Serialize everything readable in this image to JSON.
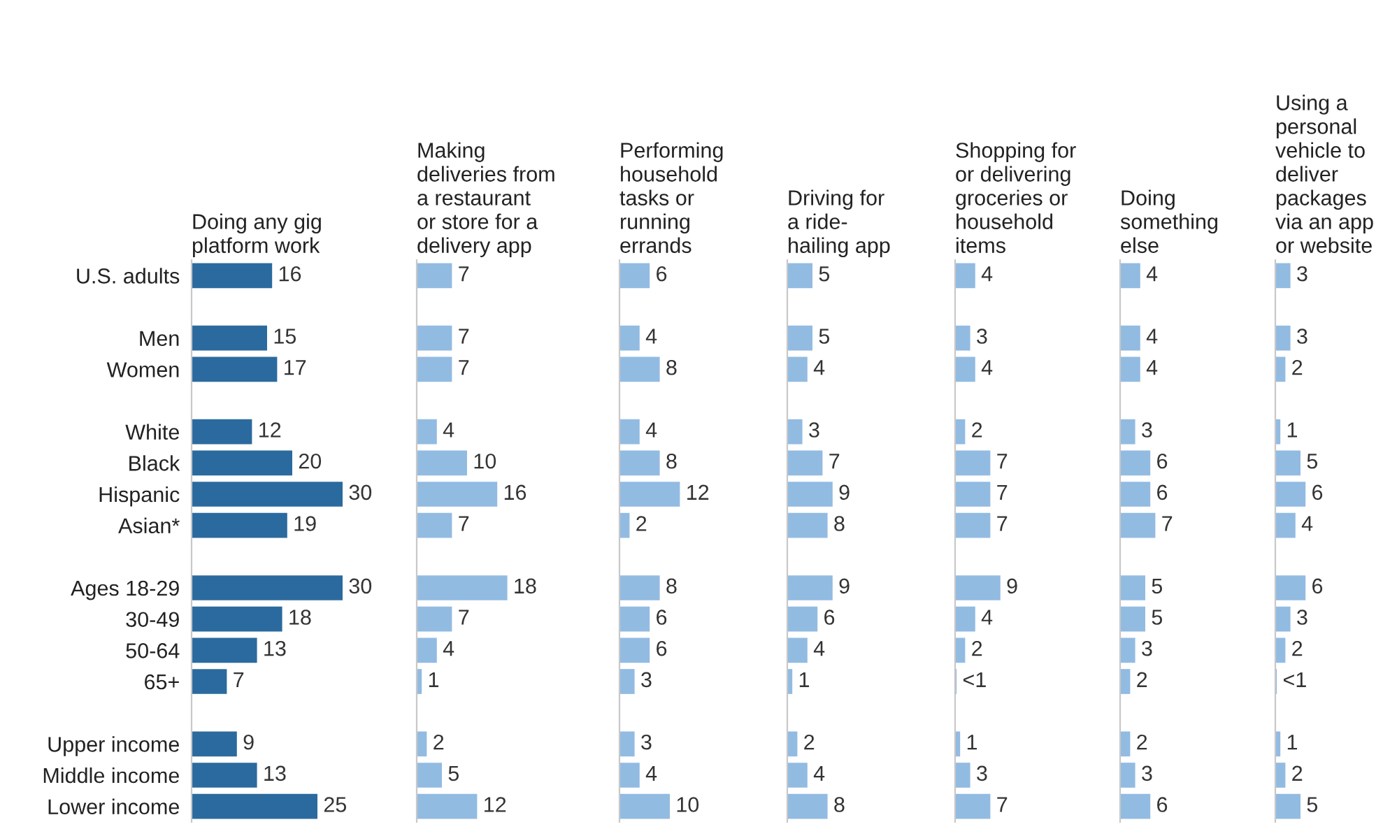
{
  "chart_data": [
    {
      "type": "bar",
      "orientation": "horizontal",
      "title": "Doing any gig\nplatform work",
      "categories": [
        "U.S. adults",
        null,
        "Men",
        "Women",
        null,
        "White",
        "Black",
        "Hispanic",
        "Asian*",
        null,
        "Ages 18-29",
        "30-49",
        "50-64",
        "65+",
        null,
        "Upper income",
        "Middle income",
        "Lower income"
      ],
      "values": [
        16,
        null,
        15,
        17,
        null,
        12,
        20,
        30,
        19,
        null,
        30,
        18,
        13,
        7,
        null,
        9,
        13,
        25
      ],
      "color": "#2b6a9e",
      "tick_labels": "y",
      "data_labels": true,
      "grid": false,
      "legend": false
    },
    {
      "type": "bar",
      "orientation": "horizontal",
      "title": "Making\ndeliveries from\na restaurant\nor store for a\ndelivery app",
      "values": [
        7,
        null,
        7,
        7,
        null,
        4,
        10,
        16,
        7,
        null,
        18,
        7,
        4,
        1,
        null,
        2,
        5,
        12
      ],
      "color": "#92bbe2",
      "tick_labels": false,
      "data_labels": true,
      "grid": false,
      "legend": false
    },
    {
      "type": "bar",
      "orientation": "horizontal",
      "title": "Performing\nhousehold\ntasks or\nrunning\nerrands",
      "values": [
        6,
        null,
        4,
        8,
        null,
        4,
        8,
        12,
        2,
        null,
        8,
        6,
        6,
        3,
        null,
        3,
        4,
        10
      ],
      "color": "#92bbe2",
      "tick_labels": false,
      "data_labels": true,
      "grid": false,
      "legend": false
    },
    {
      "type": "bar",
      "orientation": "horizontal",
      "title": "Driving for\na ride-\nhailing app",
      "values": [
        5,
        null,
        5,
        4,
        null,
        3,
        7,
        9,
        8,
        null,
        9,
        6,
        4,
        1,
        null,
        2,
        4,
        8
      ],
      "color": "#92bbe2",
      "tick_labels": false,
      "data_labels": true,
      "grid": false,
      "legend": false
    },
    {
      "type": "bar",
      "orientation": "horizontal",
      "title": "Shopping for\nor delivering\ngroceries or\nhousehold\nitems",
      "values": [
        4,
        null,
        3,
        4,
        null,
        2,
        7,
        7,
        7,
        null,
        9,
        4,
        2,
        0.3,
        null,
        1,
        3,
        7
      ],
      "value_labels": [
        "4",
        null,
        "3",
        "4",
        null,
        "2",
        "7",
        "7",
        "7",
        null,
        "9",
        "4",
        "2",
        "<1",
        null,
        "1",
        "3",
        "7"
      ],
      "color": "#92bbe2",
      "tick_labels": false,
      "grid": false,
      "legend": false
    },
    {
      "type": "bar",
      "orientation": "horizontal",
      "title": "Doing\nsomething\nelse",
      "values": [
        4,
        null,
        4,
        4,
        null,
        3,
        6,
        6,
        7,
        null,
        5,
        5,
        3,
        2,
        null,
        2,
        3,
        6
      ],
      "color": "#92bbe2",
      "tick_labels": false,
      "data_labels": true,
      "grid": false,
      "legend": false
    },
    {
      "type": "bar",
      "orientation": "horizontal",
      "title": "Using a\npersonal\nvehicle to\ndeliver\npackages\nvia an app\nor website",
      "values": [
        3,
        null,
        3,
        2,
        null,
        1,
        5,
        6,
        4,
        null,
        6,
        3,
        2,
        0.3,
        null,
        1,
        2,
        5
      ],
      "value_labels": [
        "3",
        null,
        "3",
        "2",
        null,
        "1",
        "5",
        "6",
        "4",
        null,
        "6",
        "3",
        "2",
        "<1",
        null,
        "1",
        "2",
        "5"
      ],
      "color": "#92bbe2",
      "tick_labels": false,
      "grid": false,
      "legend": false
    }
  ]
}
